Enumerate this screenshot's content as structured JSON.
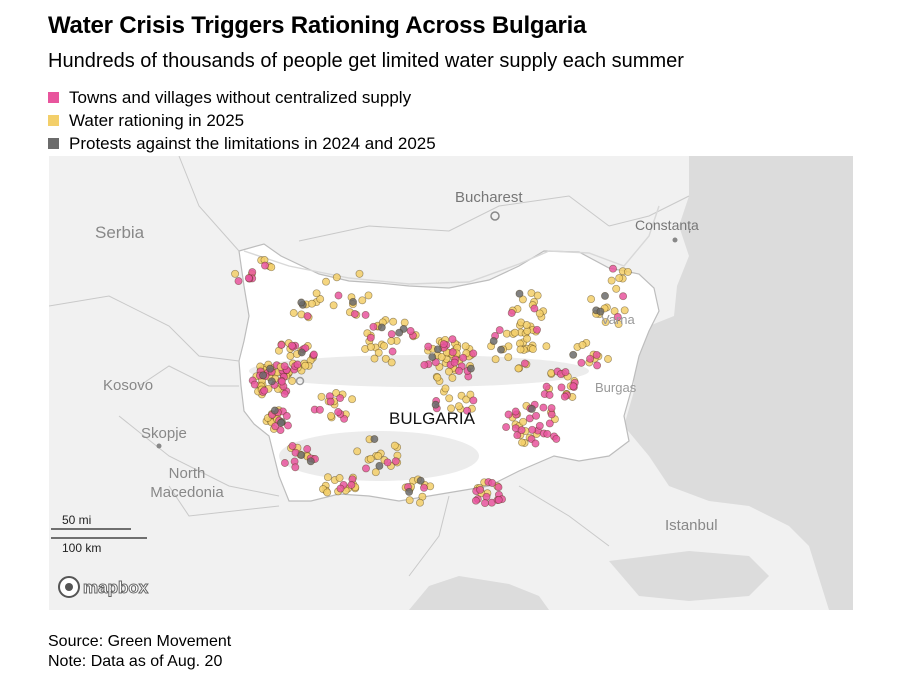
{
  "title": "Water Crisis Triggers Rationing Across Bulgaria",
  "subtitle": "Hundreds of thousands of people get limited water supply each summer",
  "legend": [
    {
      "label": "Towns and villages without centralized supply",
      "color": "#e8559d"
    },
    {
      "label": "Water rationing in 2025",
      "color": "#f3cf6a"
    },
    {
      "label": "Protests against the limitations in 2024 and 2025",
      "color": "#6b6b6b"
    }
  ],
  "map": {
    "country_label": "BULGARIA",
    "place_labels": [
      "Bucharest",
      "Constanța",
      "Serbia",
      "Kosovo",
      "Skopje",
      "North Macedonia",
      "Istanbul",
      "Varna",
      "Burgas"
    ],
    "scale": {
      "mi": "50 mi",
      "km": "100 km"
    },
    "attribution": "mapbox"
  },
  "footer": {
    "source": "Source: Green Movement",
    "note": "Note: Data as of Aug. 20"
  }
}
